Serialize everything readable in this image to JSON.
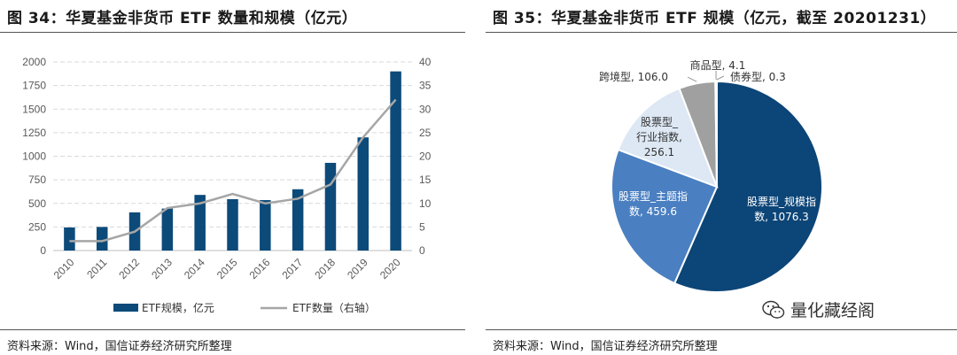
{
  "left": {
    "title": "图 34：华夏基金非货币 ETF 数量和规模（亿元）",
    "source": "资料来源：Wind，国信证券经济研究所整理"
  },
  "right": {
    "title": "图 35：华夏基金非货币 ETF 规模（亿元，截至 20201231）",
    "source": "资料来源：Wind，国信证券经济研究所整理",
    "watermark": "量化藏经阁"
  },
  "colors": {
    "bar": "#0c4a7a",
    "line": "#a6a6a6",
    "grid": "#d9d9d9",
    "axis_text": "#595959",
    "pie": [
      "#0c4577",
      "#4a7fc1",
      "#dde8f4",
      "#a0a0a0",
      "#d8d8d8"
    ]
  },
  "chart_data": [
    {
      "type": "bar",
      "categories": [
        "2010",
        "2011",
        "2012",
        "2013",
        "2014",
        "2015",
        "2016",
        "2017",
        "2018",
        "2019",
        "2020"
      ],
      "series": [
        {
          "name": "ETF规模，亿元",
          "kind": "bar",
          "axis": "left",
          "values": [
            245,
            250,
            405,
            445,
            590,
            545,
            535,
            650,
            930,
            1200,
            1900
          ]
        },
        {
          "name": "ETF数量（右轴）",
          "kind": "line",
          "axis": "right",
          "values": [
            2,
            2,
            4,
            9,
            10,
            12,
            10,
            11,
            14,
            24,
            32
          ]
        }
      ],
      "ylim": [
        0,
        2000
      ],
      "yticks": [
        "0",
        "250",
        "500",
        "750",
        "1000",
        "1250",
        "1500",
        "1750",
        "2000"
      ],
      "y2lim": [
        0,
        40
      ],
      "y2ticks": [
        "0",
        "5",
        "10",
        "15",
        "20",
        "25",
        "30",
        "35",
        "40"
      ],
      "legend": [
        "ETF规模，亿元",
        "ETF数量（右轴）"
      ],
      "legend_position": "bottom",
      "grid": true
    },
    {
      "type": "pie",
      "slices": [
        {
          "label": "股票型_规模指数",
          "value": 1076.3,
          "text": "股票型_规模指数, 1076.3"
        },
        {
          "label": "股票型_主题指数",
          "value": 459.6,
          "text": "股票型_主题指数, 459.6"
        },
        {
          "label": "股票型_行业指数",
          "value": 256.1,
          "text": "股票型_行业指数, 256.1"
        },
        {
          "label": "跨境型",
          "value": 106.0,
          "text": "跨境型, 106.0"
        },
        {
          "label": "商品型",
          "value": 4.1,
          "text": "商品型, 4.1"
        },
        {
          "label": "债券型",
          "value": 0.3,
          "text": "债券型, 0.3"
        }
      ],
      "label_lines": {
        "slice0": [
          "股票型_规模指",
          "数, 1076.3"
        ],
        "slice1": [
          "股票型_主题指",
          "数, 459.6"
        ],
        "slice2": [
          "股票型_",
          "行业指数,",
          "256.1"
        ],
        "slice3": [
          "跨境型, 106.0"
        ],
        "slice4": [
          "商品型, 4.1"
        ],
        "slice5": [
          "债券型, 0.3"
        ]
      }
    }
  ]
}
